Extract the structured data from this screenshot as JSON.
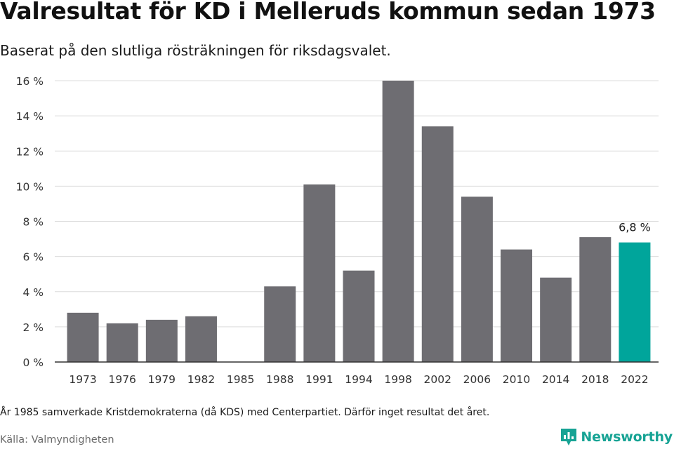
{
  "header": {
    "title": "Valresultat för KD i Melleruds kommun sedan 1973",
    "subtitle": "Baserat på den slutliga rösträkningen för riksdagsvalet."
  },
  "footer": {
    "note": "År 1985 samverkade Kristdemokraterna (då KDS) med Centerpartiet. Därför inget resultat det året.",
    "source": "Källa: Valmyndigheten",
    "brand": "Newsworthy"
  },
  "colors": {
    "bar": "#6e6d72",
    "highlight": "#00a59b",
    "grid": "#dcdcdc",
    "axis": "#333333",
    "brand": "#16a394"
  },
  "chart_data": {
    "type": "bar",
    "categories": [
      "1973",
      "1976",
      "1979",
      "1982",
      "1985",
      "1988",
      "1991",
      "1994",
      "1998",
      "2002",
      "2006",
      "2010",
      "2014",
      "2018",
      "2022"
    ],
    "values": [
      2.8,
      2.2,
      2.4,
      2.6,
      null,
      4.3,
      10.1,
      5.2,
      16.0,
      13.4,
      9.4,
      6.4,
      4.8,
      7.1,
      6.8
    ],
    "highlight_index": 14,
    "highlight_label": "6,8 %",
    "ylim": [
      0,
      16
    ],
    "yticks": [
      0,
      2,
      4,
      6,
      8,
      10,
      12,
      14,
      16
    ],
    "ytick_labels": [
      "0 %",
      "2 %",
      "4 %",
      "6 %",
      "8 %",
      "10 %",
      "12 %",
      "14 %",
      "16 %"
    ],
    "grid": true,
    "xlabel": "",
    "ylabel": ""
  }
}
